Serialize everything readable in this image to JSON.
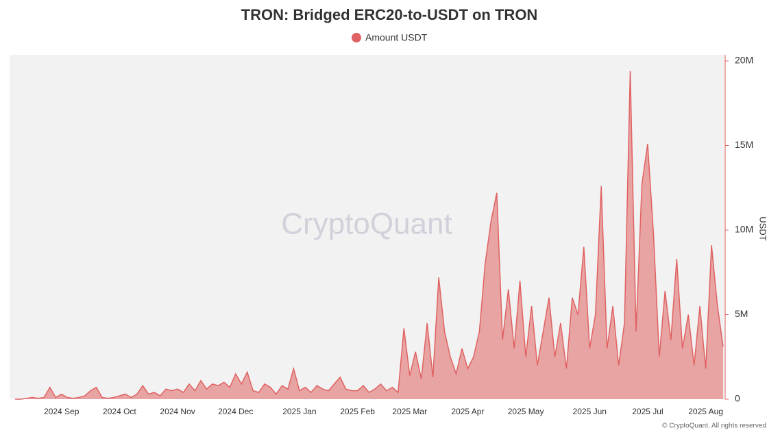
{
  "chart_data": {
    "type": "area",
    "title": "TRON: Bridged ERC20-to-USDT on TRON",
    "y_axis_label": "USDT",
    "watermark": "CryptoQuant",
    "footer": "© CryptoQuant. All rights reserved",
    "categories": [
      null,
      null,
      null,
      null,
      null,
      null,
      null,
      null,
      "2024 Sep",
      null,
      null,
      null,
      null,
      null,
      null,
      null,
      null,
      null,
      "2024 Oct",
      null,
      null,
      null,
      null,
      null,
      null,
      null,
      null,
      null,
      "2024 Nov",
      null,
      null,
      null,
      null,
      null,
      null,
      null,
      null,
      null,
      "2024 Dec",
      null,
      null,
      null,
      null,
      null,
      null,
      null,
      null,
      null,
      null,
      "2025 Jan",
      null,
      null,
      null,
      null,
      null,
      null,
      null,
      null,
      null,
      "2025 Feb",
      null,
      null,
      null,
      null,
      null,
      null,
      null,
      null,
      "2025 Mar",
      null,
      null,
      null,
      null,
      null,
      null,
      null,
      null,
      null,
      "2025 Apr",
      null,
      null,
      null,
      null,
      null,
      null,
      null,
      null,
      null,
      "2025 May",
      null,
      null,
      null,
      null,
      null,
      null,
      null,
      null,
      null,
      null,
      "2025 Jun",
      null,
      null,
      null,
      null,
      null,
      null,
      null,
      null,
      null,
      "2025 Jul",
      null,
      null,
      null,
      null,
      null,
      null,
      null,
      null,
      null,
      "2025 Aug",
      null,
      null,
      null
    ],
    "series": [
      {
        "name": "Amount USDT",
        "color": "#e06262",
        "values": [
          0,
          0,
          50000,
          100000,
          50000,
          100000,
          700000,
          100000,
          300000,
          100000,
          50000,
          100000,
          200000,
          500000,
          700000,
          100000,
          50000,
          100000,
          200000,
          300000,
          100000,
          300000,
          800000,
          300000,
          400000,
          200000,
          600000,
          500000,
          600000,
          400000,
          900000,
          500000,
          1100000,
          600000,
          900000,
          800000,
          1000000,
          700000,
          1500000,
          900000,
          1600000,
          500000,
          400000,
          900000,
          700000,
          300000,
          800000,
          600000,
          1800000,
          500000,
          700000,
          400000,
          800000,
          600000,
          500000,
          900000,
          1300000,
          600000,
          500000,
          500000,
          800000,
          400000,
          600000,
          900000,
          500000,
          700000,
          400000,
          4200000,
          1400000,
          2800000,
          1200000,
          4500000,
          1300000,
          7200000,
          4000000,
          2500000,
          1500000,
          3000000,
          1800000,
          2500000,
          4000000,
          8000000,
          10500000,
          12200000,
          3500000,
          6500000,
          3000000,
          7000000,
          2500000,
          5500000,
          2000000,
          4000000,
          6000000,
          2500000,
          4500000,
          1800000,
          6000000,
          5000000,
          9000000,
          3000000,
          5000000,
          12600000,
          3000000,
          5500000,
          2000000,
          4500000,
          19400000,
          4000000,
          12700000,
          15100000,
          9800000,
          2500000,
          6400000,
          3500000,
          8300000,
          3000000,
          5000000,
          2000000,
          5500000,
          1800000,
          9100000,
          5600000,
          3100000
        ]
      }
    ],
    "ylim": [
      0,
      20000000
    ],
    "yticks": [
      0,
      {
        "value": 5000000,
        "label": "5M"
      },
      {
        "value": 10000000,
        "label": "10M"
      },
      {
        "value": 15000000,
        "label": "15M"
      },
      {
        "value": 20000000,
        "label": "20M"
      }
    ]
  }
}
